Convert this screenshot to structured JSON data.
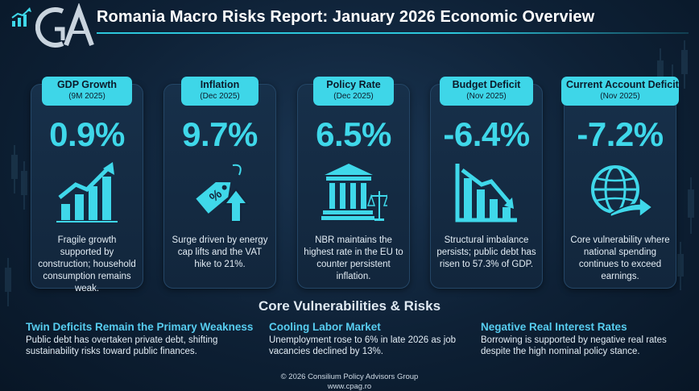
{
  "header": {
    "logo_text": "GA",
    "title": "Romania Macro Risks Report: January 2026 Economic Overview"
  },
  "cards": [
    {
      "label": "GDP Growth",
      "period": "(9M 2025)",
      "value": "0.9%",
      "icon": "bar-chart-growth-icon",
      "description": "Fragile growth supported by construction; household consumption remains weak."
    },
    {
      "label": "Inflation",
      "period": "(Dec 2025)",
      "value": "9.7%",
      "icon": "price-tag-up-arrow-icon",
      "description": "Surge driven by energy cap lifts and the VAT hike to 21%."
    },
    {
      "label": "Policy Rate",
      "period": "(Dec 2025)",
      "value": "6.5%",
      "icon": "bank-scales-icon",
      "description": "NBR maintains the highest rate in the EU to counter persistent inflation."
    },
    {
      "label": "Budget Deficit",
      "period": "(Nov 2025)",
      "value": "-6.4%",
      "icon": "bar-chart-decline-icon",
      "description": "Structural imbalance persists; public debt has risen to 57.3% of GDP."
    },
    {
      "label": "Current Account Deficit",
      "period": "(Nov 2025)",
      "value": "-7.2%",
      "icon": "globe-arrow-icon",
      "description": "Core vulnerability where national spending continues to exceed earnings."
    }
  ],
  "section": {
    "title": "Core Vulnerabilities & Risks",
    "risks": [
      {
        "title": "Twin Deficits Remain the Primary Weakness",
        "text": "Public debt has overtaken private debt, shifting sustainability risks toward public finances."
      },
      {
        "title": "Cooling  Labor Market",
        "text": "Unemployment rose to 6% in late 2026 as job vacancies declined by 13%."
      },
      {
        "title": "Negative Real Interest Rates",
        "text": "Borrowing is supported by negative real rates despite the high nominal policy stance."
      }
    ]
  },
  "footer": {
    "copyright": "© 2026 Consilium Policy Advisors Group",
    "website": "www.cpag.ro"
  },
  "colors": {
    "accent": "#3fd8ea",
    "background": "#0d1f33",
    "risk_title": "#57cdf0"
  }
}
